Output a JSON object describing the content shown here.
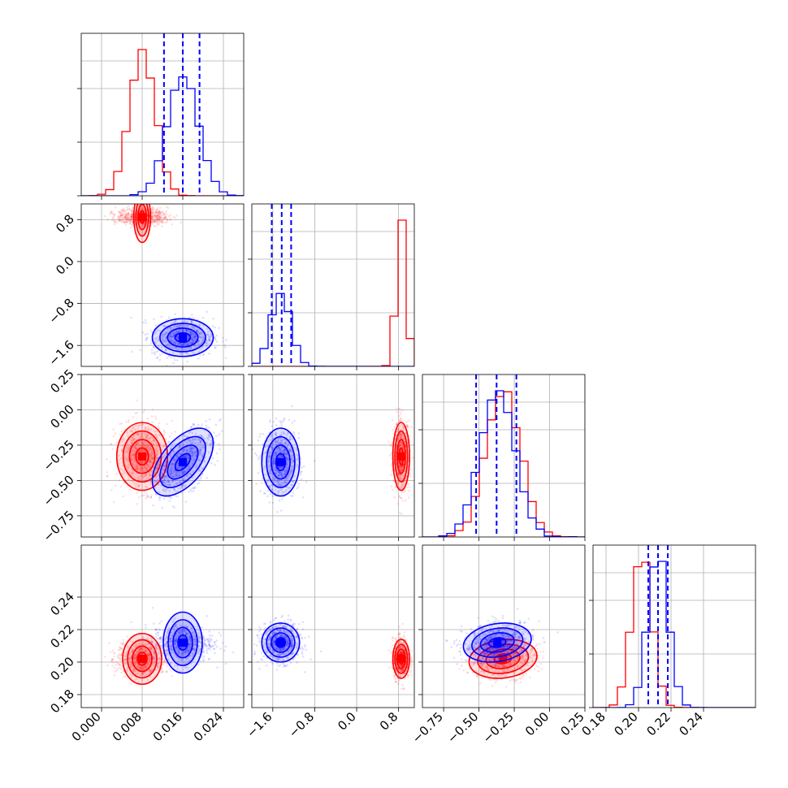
{
  "chart_data": {
    "type": "corner",
    "parameters": [
      {
        "range": [
          -0.004,
          0.028
        ],
        "ticks": [
          0.0,
          0.008,
          0.016,
          0.024
        ],
        "tick_labels": [
          "0.000",
          "0.008",
          "0.016",
          "0.024"
        ]
      },
      {
        "range": [
          -2.0,
          1.1
        ],
        "ticks": [
          -1.6,
          -0.8,
          0.0,
          0.8
        ],
        "tick_labels": [
          "−1.6",
          "−0.8",
          "0.0",
          "0.8"
        ]
      },
      {
        "range": [
          -0.9,
          0.25
        ],
        "ticks": [
          -0.75,
          -0.5,
          -0.25,
          0.0,
          0.25
        ],
        "tick_labels": [
          "−0.75",
          "−0.50",
          "−0.25",
          "0.00",
          "0.25"
        ]
      },
      {
        "range": [
          0.172,
          0.272
        ],
        "ticks": [
          0.18,
          0.2,
          0.22,
          0.24
        ],
        "tick_labels": [
          "0.18",
          "0.20",
          "0.22",
          "0.24"
        ]
      }
    ],
    "series": [
      {
        "color": "#ff0000",
        "means": [
          0.008,
          0.85,
          -0.33,
          0.202
        ],
        "sds": [
          0.0025,
          0.08,
          0.12,
          0.006
        ],
        "corr": {
          "0-2": 0.0,
          "2-3": 0.15
        }
      },
      {
        "color": "#0000ff",
        "means": [
          0.016,
          -1.45,
          -0.37,
          0.212
        ],
        "sds": [
          0.003,
          0.18,
          0.12,
          0.006
        ],
        "corr": {
          "0-2": 0.55,
          "2-3": 0.2
        }
      }
    ],
    "quantile_lines": {
      "color": "#0000ff",
      "values": [
        [
          0.0123,
          0.016,
          0.0193
        ],
        [
          -1.62,
          -1.43,
          -1.25
        ],
        [
          -0.52,
          -0.375,
          -0.235
        ],
        [
          0.206,
          0.212,
          0.218
        ]
      ]
    },
    "grid": true
  }
}
